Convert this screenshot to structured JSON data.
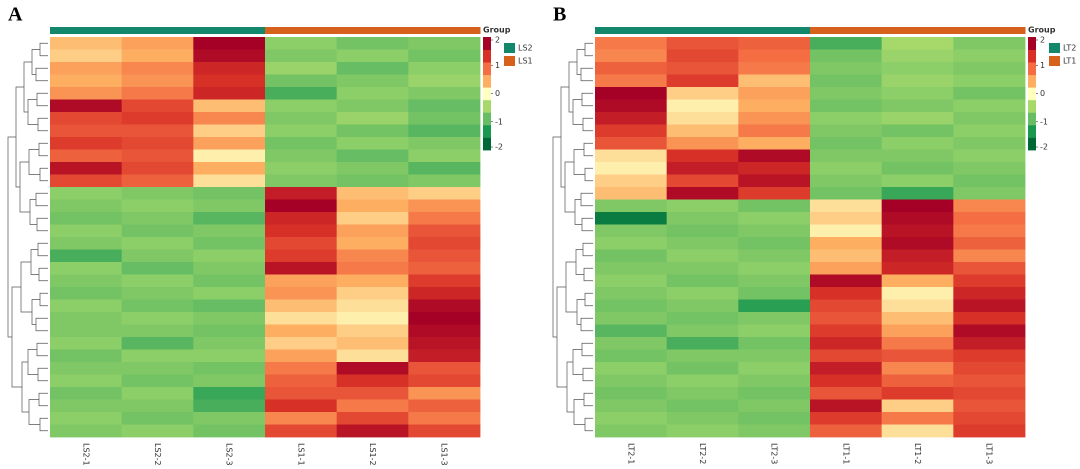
{
  "chart_data": [
    {
      "type": "heatmap",
      "panel": "A",
      "columns": [
        "LS2-1",
        "LS2-2",
        "LS2-3",
        "LS1-1",
        "LS1-2",
        "LS1-3"
      ],
      "legend_title": "Group",
      "groups": [
        {
          "name": "LS2",
          "color": "#13876c"
        },
        {
          "name": "LS1",
          "color": "#d5611c"
        }
      ],
      "column_groups": [
        0,
        0,
        0,
        1,
        1,
        1
      ],
      "clim": [
        -2,
        2
      ],
      "colorbar_ticks": [
        2,
        1,
        0,
        -1,
        -2
      ],
      "colors": [
        "#006837",
        "#1a9850",
        "#66bd63",
        "#a6d96a",
        "#ffffbf",
        "#fdae61",
        "#f46d43",
        "#d73027",
        "#a50026"
      ],
      "values": [
        [
          0.4,
          0.6,
          2.0,
          -0.7,
          -0.9,
          -0.8
        ],
        [
          0.3,
          0.5,
          1.9,
          -0.8,
          -0.7,
          -0.9
        ],
        [
          0.6,
          0.8,
          1.6,
          -0.6,
          -1.0,
          -0.7
        ],
        [
          0.5,
          0.7,
          1.5,
          -0.9,
          -0.8,
          -0.6
        ],
        [
          0.7,
          0.9,
          1.6,
          -1.2,
          -0.7,
          -0.8
        ],
        [
          1.9,
          1.3,
          0.4,
          -0.7,
          -0.8,
          -1.0
        ],
        [
          1.3,
          1.4,
          0.8,
          -0.8,
          -0.6,
          -0.9
        ],
        [
          1.2,
          1.2,
          0.3,
          -0.7,
          -0.9,
          -1.1
        ],
        [
          1.4,
          1.3,
          0.6,
          -0.9,
          -0.7,
          -0.8
        ],
        [
          1.1,
          1.2,
          0.1,
          -0.8,
          -1.0,
          -0.7
        ],
        [
          1.8,
          1.3,
          0.5,
          -0.7,
          -0.8,
          -1.1
        ],
        [
          1.3,
          1.1,
          0.2,
          -0.8,
          -0.9,
          -0.8
        ],
        [
          -0.7,
          -0.8,
          -0.9,
          1.7,
          0.4,
          0.3
        ],
        [
          -0.8,
          -0.7,
          -0.8,
          2.0,
          0.5,
          0.7
        ],
        [
          -0.9,
          -0.8,
          -1.1,
          1.6,
          0.3,
          0.9
        ],
        [
          -0.7,
          -0.9,
          -0.8,
          1.5,
          0.6,
          1.2
        ],
        [
          -0.8,
          -0.7,
          -0.9,
          1.3,
          0.5,
          1.3
        ],
        [
          -1.2,
          -0.8,
          -0.7,
          1.4,
          0.8,
          1.2
        ],
        [
          -0.7,
          -1.0,
          -0.8,
          1.8,
          0.9,
          1.1
        ],
        [
          -0.8,
          -0.7,
          -0.9,
          0.6,
          0.5,
          1.4
        ],
        [
          -0.9,
          -0.8,
          -0.7,
          0.7,
          0.3,
          1.6
        ],
        [
          -0.7,
          -0.9,
          -1.0,
          0.4,
          0.2,
          1.9
        ],
        [
          -0.8,
          -0.7,
          -0.8,
          0.2,
          0.1,
          2.0
        ],
        [
          -0.8,
          -0.8,
          -0.9,
          0.5,
          0.3,
          1.9
        ],
        [
          -0.7,
          -1.1,
          -0.8,
          0.3,
          0.4,
          1.8
        ],
        [
          -0.9,
          -0.7,
          -0.7,
          0.6,
          0.2,
          1.7
        ],
        [
          -0.8,
          -0.8,
          -0.9,
          0.9,
          1.9,
          1.2
        ],
        [
          -0.7,
          -0.9,
          -0.8,
          1.1,
          1.5,
          1.3
        ],
        [
          -0.9,
          -0.7,
          -1.3,
          1.2,
          1.2,
          0.7
        ],
        [
          -0.8,
          -0.8,
          -1.2,
          1.5,
          0.9,
          1.1
        ],
        [
          -0.7,
          -0.9,
          -0.8,
          0.8,
          1.3,
          0.9
        ],
        [
          -0.8,
          -0.7,
          -0.9,
          1.3,
          1.8,
          1.3
        ]
      ]
    },
    {
      "type": "heatmap",
      "panel": "B",
      "columns": [
        "LT2-1",
        "LT2-2",
        "LT2-3",
        "LT1-1",
        "LT1-2",
        "LT1-3"
      ],
      "legend_title": "Group",
      "groups": [
        {
          "name": "LT2",
          "color": "#13876c"
        },
        {
          "name": "LT1",
          "color": "#d5611c"
        }
      ],
      "column_groups": [
        0,
        0,
        0,
        1,
        1,
        1
      ],
      "clim": [
        -2,
        2
      ],
      "colorbar_ticks": [
        2,
        1,
        0,
        -1,
        -2
      ],
      "colors": [
        "#006837",
        "#1a9850",
        "#66bd63",
        "#a6d96a",
        "#ffffbf",
        "#fdae61",
        "#f46d43",
        "#d73027",
        "#a50026"
      ],
      "values": [
        [
          0.9,
          1.2,
          1.1,
          -1.2,
          -0.5,
          -0.8
        ],
        [
          0.8,
          1.3,
          1.0,
          -0.9,
          -0.6,
          -0.7
        ],
        [
          1.1,
          1.2,
          0.9,
          -0.8,
          -0.7,
          -0.8
        ],
        [
          0.9,
          1.4,
          0.4,
          -0.9,
          -0.6,
          -0.7
        ],
        [
          2.0,
          0.3,
          0.6,
          -0.8,
          -0.7,
          -0.9
        ],
        [
          1.9,
          0.1,
          0.5,
          -0.9,
          -0.8,
          -0.7
        ],
        [
          1.7,
          0.2,
          0.7,
          -0.7,
          -0.6,
          -0.8
        ],
        [
          1.4,
          0.4,
          0.9,
          -0.8,
          -0.9,
          -0.7
        ],
        [
          1.2,
          0.7,
          0.5,
          -0.9,
          -0.7,
          -0.8
        ],
        [
          0.2,
          1.5,
          1.9,
          -0.8,
          -0.8,
          -0.7
        ],
        [
          0.1,
          1.7,
          1.6,
          -0.7,
          -0.9,
          -0.8
        ],
        [
          0.3,
          1.3,
          1.8,
          -0.8,
          -0.7,
          -0.9
        ],
        [
          0.4,
          1.9,
          1.4,
          -0.9,
          -1.3,
          -0.8
        ],
        [
          -0.8,
          -0.7,
          -0.9,
          0.2,
          2.0,
          0.8
        ],
        [
          -1.8,
          -0.8,
          -0.7,
          0.3,
          1.9,
          1.0
        ],
        [
          -0.8,
          -0.9,
          -0.8,
          0.1,
          1.8,
          0.9
        ],
        [
          -0.7,
          -0.8,
          -0.9,
          0.5,
          1.9,
          1.1
        ],
        [
          -0.9,
          -0.7,
          -0.8,
          0.4,
          1.7,
          0.8
        ],
        [
          -0.8,
          -0.8,
          -0.7,
          0.6,
          1.6,
          1.2
        ],
        [
          -0.7,
          -0.9,
          -0.8,
          1.9,
          0.5,
          1.4
        ],
        [
          -0.8,
          -0.7,
          -0.9,
          1.5,
          0.1,
          1.6
        ],
        [
          -0.9,
          -0.8,
          -1.4,
          1.3,
          0.2,
          1.8
        ],
        [
          -0.8,
          -0.9,
          -0.8,
          1.2,
          0.4,
          1.5
        ],
        [
          -1.1,
          -0.8,
          -0.7,
          1.4,
          0.6,
          1.9
        ],
        [
          -0.8,
          -1.2,
          -0.9,
          1.6,
          0.9,
          1.7
        ],
        [
          -0.9,
          -0.8,
          -0.8,
          1.3,
          1.2,
          1.4
        ],
        [
          -0.7,
          -0.9,
          -0.7,
          1.7,
          0.8,
          1.3
        ],
        [
          -0.8,
          -0.7,
          -0.8,
          1.5,
          1.1,
          1.2
        ],
        [
          -0.9,
          -0.8,
          -0.9,
          1.2,
          1.4,
          1.3
        ],
        [
          -0.8,
          -0.9,
          -0.8,
          1.8,
          0.3,
          1.2
        ],
        [
          -0.7,
          -0.8,
          -0.9,
          1.4,
          0.9,
          1.3
        ],
        [
          -0.8,
          -0.7,
          -0.8,
          1.1,
          0.2,
          1.4
        ]
      ]
    }
  ]
}
